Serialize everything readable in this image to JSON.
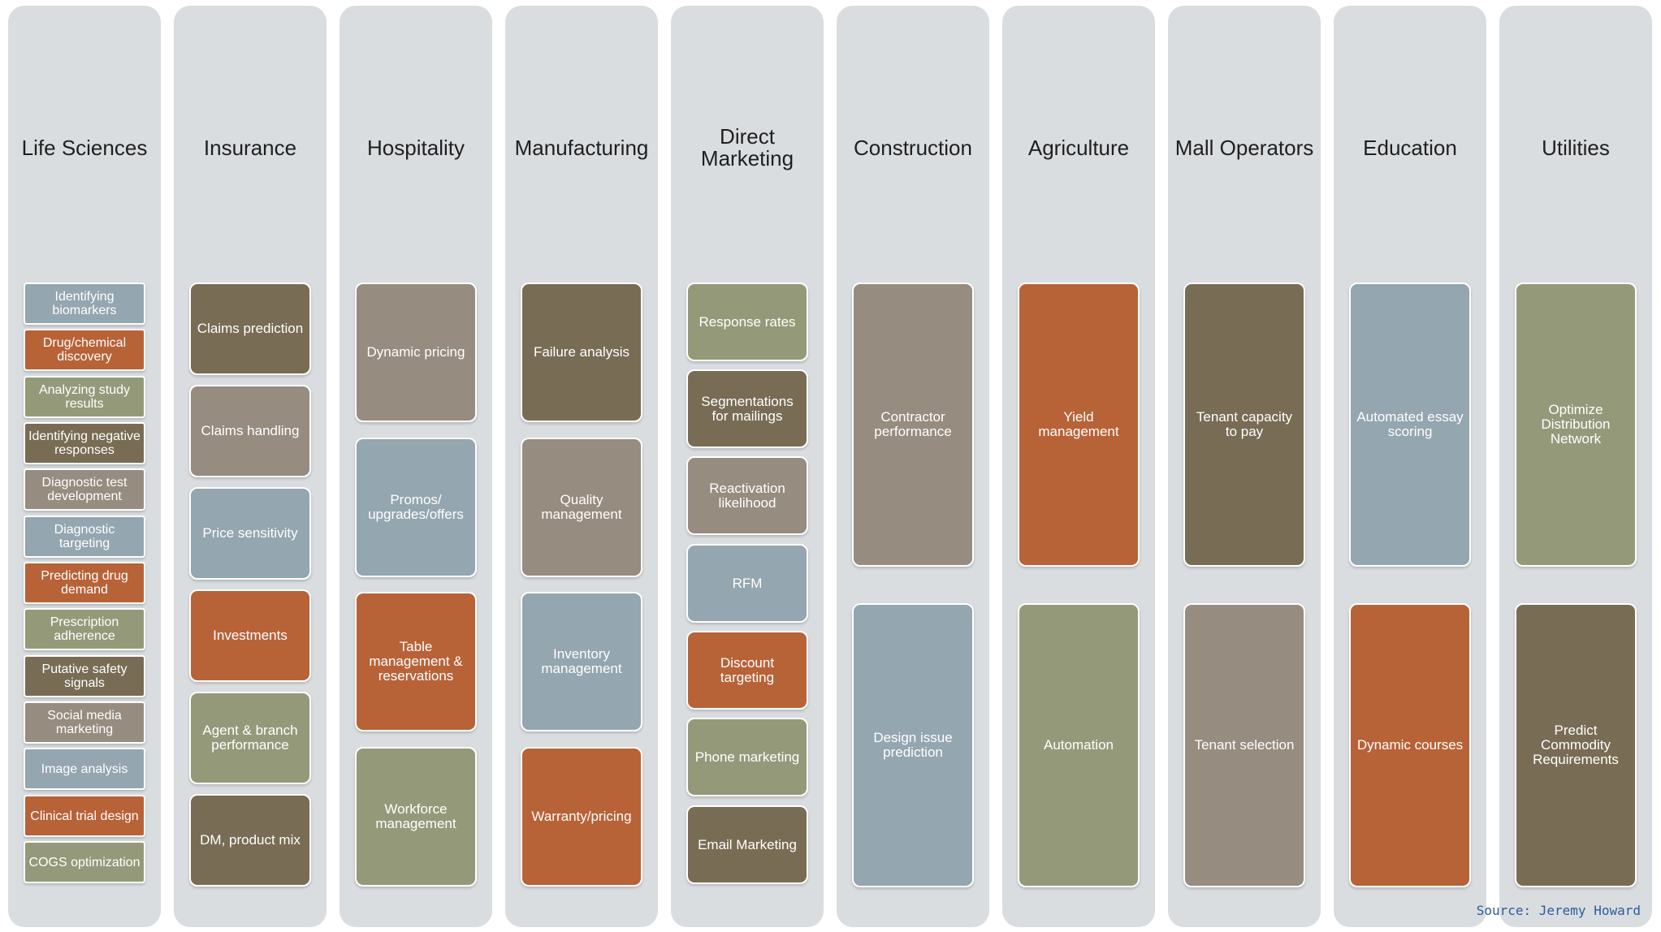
{
  "colors": {
    "column_bg": "#dadde0",
    "blue_gray": "#94a6af",
    "orange": "#b86238",
    "sage": "#949a79",
    "dark_olive": "#786c54",
    "taupe": "#968c7f",
    "source_text": "#2a5d9f"
  },
  "columns": [
    {
      "title": "Life Sciences",
      "items": [
        {
          "label": "Identifying biomarkers",
          "color": "#94a6af"
        },
        {
          "label": "Drug/chemical discovery",
          "color": "#b86238"
        },
        {
          "label": "Analyzing study results",
          "color": "#949a79"
        },
        {
          "label": "Identifying negative responses",
          "color": "#786c54"
        },
        {
          "label": "Diagnostic test development",
          "color": "#968c7f"
        },
        {
          "label": "Diagnostic targeting",
          "color": "#94a6af"
        },
        {
          "label": "Predicting drug demand",
          "color": "#b86238"
        },
        {
          "label": "Prescription adherence",
          "color": "#949a79"
        },
        {
          "label": "Putative safety signals",
          "color": "#786c54"
        },
        {
          "label": "Social media marketing",
          "color": "#968c7f"
        },
        {
          "label": "Image analysis",
          "color": "#94a6af"
        },
        {
          "label": "Clinical trial design",
          "color": "#b86238"
        },
        {
          "label": "COGS optimization",
          "color": "#949a79"
        }
      ]
    },
    {
      "title": "Insurance",
      "items": [
        {
          "label": "Claims prediction",
          "color": "#786c54"
        },
        {
          "label": "Claims handling",
          "color": "#968c7f"
        },
        {
          "label": "Price sensitivity",
          "color": "#94a6af"
        },
        {
          "label": "Investments",
          "color": "#b86238"
        },
        {
          "label": "Agent & branch performance",
          "color": "#949a79"
        },
        {
          "label": "DM, product mix",
          "color": "#786c54"
        }
      ]
    },
    {
      "title": "Hospitality",
      "items": [
        {
          "label": "Dynamic pricing",
          "color": "#968c7f"
        },
        {
          "label": "Promos/ upgrades/offers",
          "color": "#94a6af"
        },
        {
          "label": "Table management & reservations",
          "color": "#b86238"
        },
        {
          "label": "Workforce management",
          "color": "#949a79"
        }
      ]
    },
    {
      "title": "Manufacturing",
      "items": [
        {
          "label": "Failure analysis",
          "color": "#786c54"
        },
        {
          "label": "Quality management",
          "color": "#968c7f"
        },
        {
          "label": "Inventory management",
          "color": "#94a6af"
        },
        {
          "label": "Warranty/pricing",
          "color": "#b86238"
        }
      ]
    },
    {
      "title": "Direct\nMarketing",
      "items": [
        {
          "label": "Response rates",
          "color": "#949a79"
        },
        {
          "label": "Segmentations for mailings",
          "color": "#786c54"
        },
        {
          "label": "Reactivation likelihood",
          "color": "#968c7f"
        },
        {
          "label": "RFM",
          "color": "#94a6af"
        },
        {
          "label": "Discount targeting",
          "color": "#b86238"
        },
        {
          "label": "Phone marketing",
          "color": "#949a79"
        },
        {
          "label": "Email Marketing",
          "color": "#786c54"
        }
      ]
    },
    {
      "title": "Construction",
      "items": [
        {
          "label": "Contractor performance",
          "color": "#968c7f"
        },
        {
          "label": "Design issue prediction",
          "color": "#94a6af"
        }
      ]
    },
    {
      "title": "Agriculture",
      "items": [
        {
          "label": "Yield management",
          "color": "#b86238"
        },
        {
          "label": "Automation",
          "color": "#949a79"
        }
      ]
    },
    {
      "title": "Mall Operators",
      "items": [
        {
          "label": "Tenant capacity to pay",
          "color": "#786c54"
        },
        {
          "label": "Tenant selection",
          "color": "#968c7f"
        }
      ]
    },
    {
      "title": "Education",
      "items": [
        {
          "label": "Automated essay scoring",
          "color": "#94a6af"
        },
        {
          "label": "Dynamic courses",
          "color": "#b86238"
        }
      ]
    },
    {
      "title": "Utilities",
      "items": [
        {
          "label": "Optimize Distribution Network",
          "color": "#949a79"
        },
        {
          "label": "Predict Commodity Requirements",
          "color": "#786c54"
        }
      ]
    }
  ],
  "source": "Source: Jeremy Howard"
}
